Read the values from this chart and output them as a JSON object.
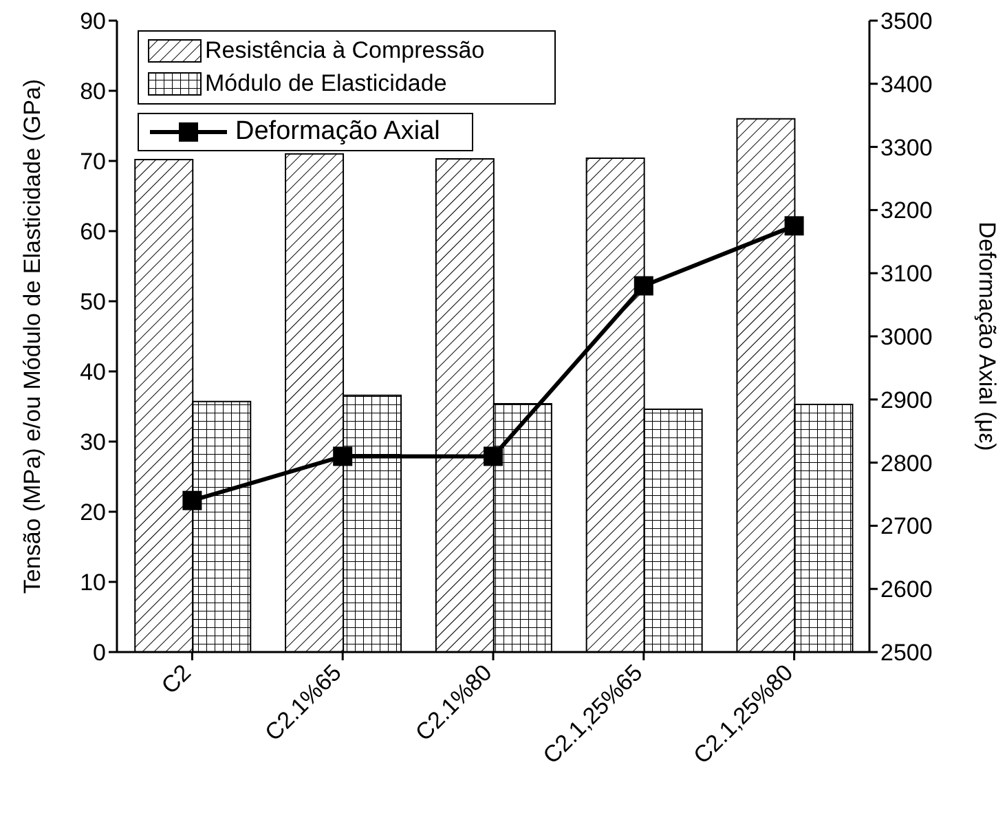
{
  "chart_data": {
    "type": "bar",
    "categories": [
      "C2",
      "C2.1%65",
      "C2.1%80",
      "C2.1,25%65",
      "C2.1,25%80"
    ],
    "ylabel": "Tensão (MPa) e/ou Módulo de Elasticidade (GPa)",
    "y2label": "Deformação Axial (με)",
    "ylim": [
      0,
      90
    ],
    "yticks": [
      0,
      10,
      20,
      30,
      40,
      50,
      60,
      70,
      80,
      90
    ],
    "y2lim": [
      2500,
      3500
    ],
    "y2ticks": [
      2500,
      2600,
      2700,
      2800,
      2900,
      3000,
      3100,
      3200,
      3300,
      3400,
      3500
    ],
    "legend": "top left",
    "marker": "square",
    "series": [
      {
        "name": "Resistência à Compressão",
        "color": "#000000",
        "values": [
          70.2,
          71,
          70.3,
          70.4,
          76
        ]
      },
      {
        "name": "Módulo de Elasticidade",
        "color": "#000000",
        "values": [
          35.7,
          36.6,
          35.4,
          34.6,
          35.3
        ]
      },
      {
        "name": "Deformação Axial",
        "type": "line",
        "axis": "y2",
        "color": "#000000",
        "values": [
          2740,
          2810,
          2810,
          3080,
          3175
        ]
      }
    ]
  }
}
